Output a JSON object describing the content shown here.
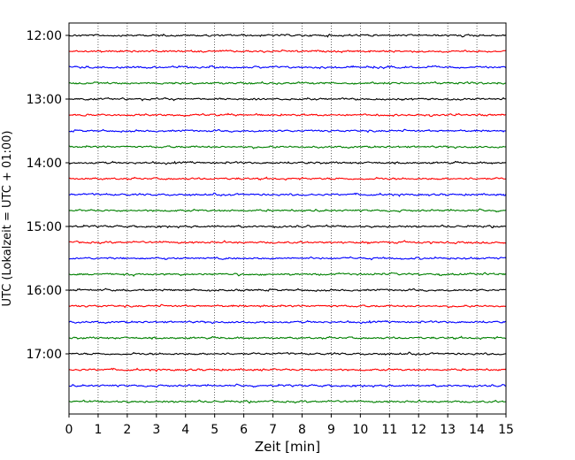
{
  "chart_data": {
    "type": "line",
    "title": "",
    "xlabel": "Zeit  [min]",
    "ylabel": "UTC (Lokalzeit = UTC + 01:00)",
    "xlim": [
      0,
      15
    ],
    "xticks": [
      "0",
      "1",
      "2",
      "3",
      "4",
      "5",
      "6",
      "7",
      "8",
      "9",
      "10",
      "11",
      "12",
      "13",
      "14",
      "15"
    ],
    "yticks": [
      "12:00",
      "13:00",
      "14:00",
      "15:00",
      "16:00",
      "17:00"
    ],
    "grid": "vertical dotted",
    "trace_colors": [
      "#000000",
      "#ff0000",
      "#0000ff",
      "#008000"
    ],
    "traces_count": 24,
    "trace_interval_minutes": 15,
    "start_time": "12:00"
  }
}
